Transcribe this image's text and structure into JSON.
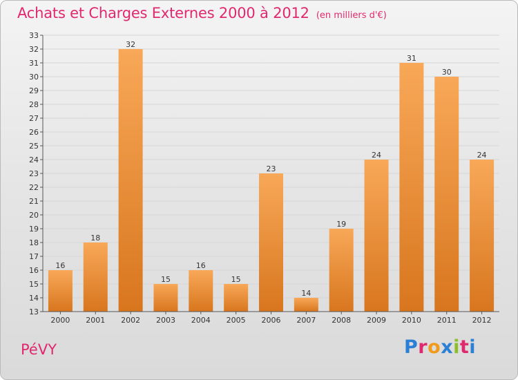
{
  "title": "Achats et Charges Externes 2000 à 2012",
  "subtitle": "(en milliers d'€)",
  "place": "PéVY",
  "logo": {
    "text": "Proxiti",
    "letter_colors": [
      "#2b7fd4",
      "#e0286e",
      "#f29a1c",
      "#2b7fd4",
      "#8cbf2a",
      "#e0286e",
      "#2b7fd4"
    ]
  },
  "colors": {
    "title": "#e0286e",
    "bar_light": "#f8a858",
    "bar_dark": "#d8761e",
    "grid": "#d6d6d6",
    "axis": "#555555"
  },
  "chart_data": {
    "type": "bar",
    "categories": [
      "2000",
      "2001",
      "2002",
      "2003",
      "2004",
      "2005",
      "2006",
      "2007",
      "2008",
      "2009",
      "2010",
      "2011",
      "2012"
    ],
    "values": [
      16,
      18,
      32,
      15,
      16,
      15,
      23,
      14,
      19,
      24,
      31,
      30,
      24
    ],
    "data_labels": [
      "16",
      "18",
      "32",
      "15",
      "16",
      "15",
      "23",
      "14",
      "19",
      "24",
      "31",
      "30",
      "24"
    ],
    "title": "Achats et Charges Externes 2000 à 2012",
    "xlabel": "",
    "ylabel": "",
    "ylim": [
      13,
      33
    ],
    "yticks": [
      13,
      14,
      15,
      16,
      17,
      18,
      19,
      20,
      21,
      22,
      23,
      24,
      25,
      26,
      27,
      28,
      29,
      30,
      31,
      32,
      33
    ],
    "grid": true
  }
}
